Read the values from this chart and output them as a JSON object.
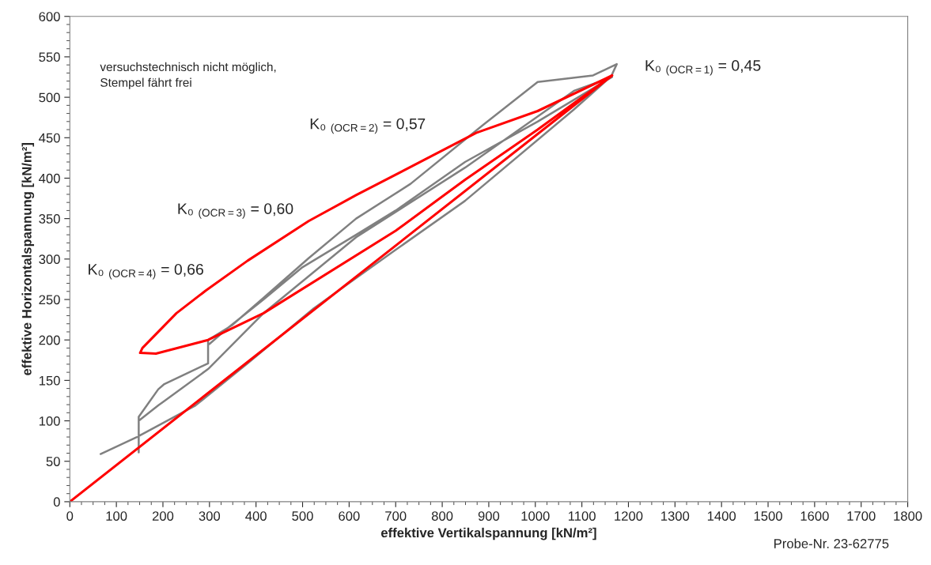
{
  "chart_data": {
    "type": "line",
    "xlabel": "effektive Vertikalspannung [kN/m²]",
    "ylabel": "effektive Horizontalspannung [kN/m²]",
    "xlim": [
      0,
      1800
    ],
    "xticks": [
      0,
      100,
      200,
      300,
      400,
      500,
      600,
      700,
      800,
      900,
      1000,
      1100,
      1200,
      1300,
      1400,
      1500,
      1600,
      1700,
      1800
    ],
    "ylim": [
      0,
      600
    ],
    "yticks": [
      0,
      50,
      100,
      150,
      200,
      250,
      300,
      350,
      400,
      450,
      500,
      550,
      600
    ],
    "grid": false,
    "legend": false,
    "marker": "none",
    "line_style": "solid",
    "series": [
      {
        "color": "#808080",
        "x": [
          66,
          144,
          270,
          382,
          524,
          699,
          849,
          1083,
          1163,
          1175,
          1124,
          1005,
          888,
          732,
          615,
          513,
          416,
          348,
          297,
          297,
          202,
          190,
          148,
          148,
          148,
          190,
          297,
          416,
          615,
          849,
          1083,
          1165,
          1150,
          1005,
          849,
          700,
          615,
          500,
          416,
          340,
          300
        ],
        "values": [
          59,
          80,
          119,
          171,
          239,
          311,
          372,
          485,
          526,
          541,
          527,
          519,
          466,
          393,
          350,
          301,
          252,
          218,
          200,
          171,
          145,
          139,
          105,
          61,
          100,
          119,
          164,
          233,
          327,
          413,
          508,
          525,
          520,
          470,
          420,
          360,
          330,
          290,
          250,
          215,
          195
        ]
      },
      {
        "color": "#ff0000",
        "x": [
          0,
          1165,
          1005,
          873,
          615,
          513,
          382,
          292,
          229,
          156,
          151,
          185,
          297,
          416,
          700,
          849,
          1005,
          1165
        ],
        "values": [
          0,
          527,
          483,
          456,
          379,
          347,
          298,
          261,
          233,
          190,
          184,
          183,
          200,
          233,
          335,
          398,
          460,
          527
        ]
      }
    ],
    "annotations": [
      "K₀ $_{(OCR=1)}$ = 0,45",
      "K₀ $_{(OCR=2)}$ = 0,57",
      "K₀ $_{(OCR=3)}$ = 0,60",
      "K₀ $_{(OCR=4)}$ = 0,66",
      "versuchstechnisch nicht möglich,\nStempel fährt frei",
      "Probe-Nr. 23-62775"
    ]
  }
}
